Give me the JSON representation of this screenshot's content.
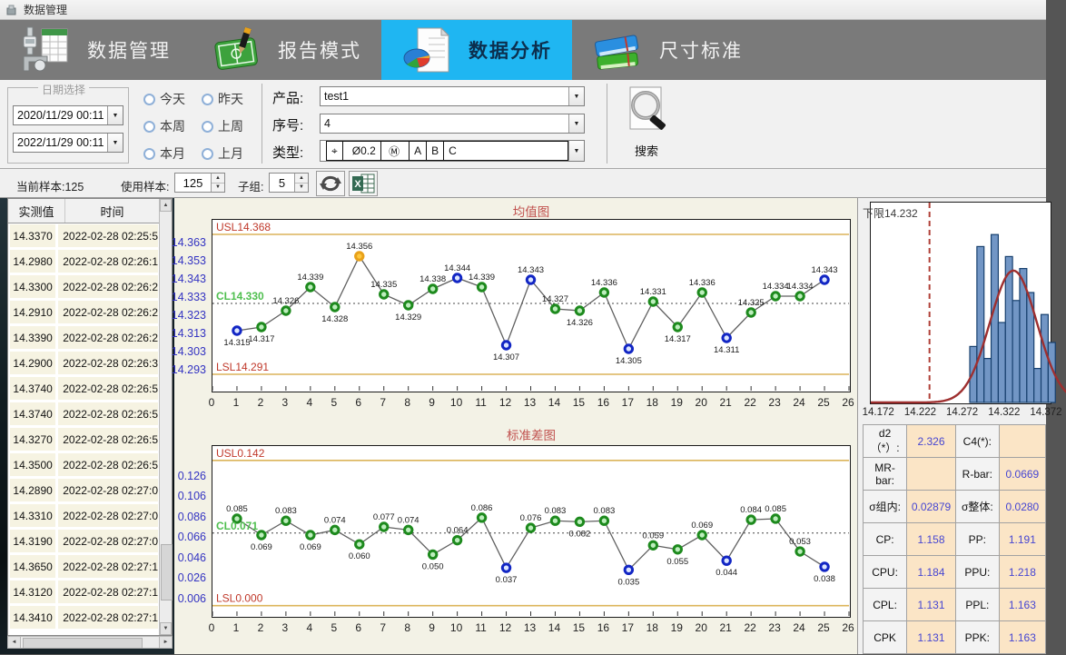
{
  "window_title": "数据管理",
  "palette": {
    "active_tab": "#1fb6f2",
    "ribbon_bg": "#7a7a7a",
    "title_red": "#c0504d",
    "limit_line": "#dcb45a",
    "limit_text": "#c0392b",
    "cl_text": "#4fbf4f",
    "ytick_blue": "#3434c2",
    "point_green": "#1d8a1d",
    "point_blue": "#1226c4",
    "point_orange": "#e8a11a",
    "hist_bar": "#7296c5",
    "hist_bar_border": "#17406e",
    "hist_curve": "#9e2f2f",
    "value_text": "#4646d2"
  },
  "ribbon": {
    "active_index": 2,
    "tabs": [
      {
        "label": "数据管理"
      },
      {
        "label": "报告模式"
      },
      {
        "label": "数据分析"
      },
      {
        "label": "尺寸标准"
      }
    ]
  },
  "filters": {
    "date_group_label": "日期选择",
    "date_from": "2020/11/29 00:11",
    "date_to": "2022/11/29 00:11",
    "radios": [
      "今天",
      "昨天",
      "本周",
      "上周",
      "本月",
      "上月"
    ],
    "product_label": "产品:",
    "product_value": "test1",
    "serial_label": "序号:",
    "serial_value": "4",
    "type_label": "类型:",
    "type_value": {
      "symbol": "⌖",
      "tolerance": "Ø0.2",
      "modifier": "Ⓜ",
      "datums": [
        "A",
        "B",
        "C"
      ]
    },
    "search_label": "搜索"
  },
  "samplebar": {
    "current_sample": "当前样本:125",
    "use_sample_label": "使用样本:",
    "use_sample_value": "125",
    "subgroup_label": "子组:",
    "subgroup_value": "5"
  },
  "data_table": {
    "columns": [
      "实测值",
      "时间"
    ],
    "rows": [
      [
        "14.3370",
        "2022-02-28 02:25:5"
      ],
      [
        "14.2980",
        "2022-02-28 02:26:1"
      ],
      [
        "14.3300",
        "2022-02-28 02:26:2"
      ],
      [
        "14.2910",
        "2022-02-28 02:26:2"
      ],
      [
        "14.3390",
        "2022-02-28 02:26:2"
      ],
      [
        "14.2900",
        "2022-02-28 02:26:3"
      ],
      [
        "14.3740",
        "2022-02-28 02:26:5"
      ],
      [
        "14.3740",
        "2022-02-28 02:26:5"
      ],
      [
        "14.3270",
        "2022-02-28 02:26:5"
      ],
      [
        "14.3500",
        "2022-02-28 02:26:5"
      ],
      [
        "14.2890",
        "2022-02-28 02:27:0"
      ],
      [
        "14.3310",
        "2022-02-28 02:27:0"
      ],
      [
        "14.3190",
        "2022-02-28 02:27:0"
      ],
      [
        "14.3650",
        "2022-02-28 02:27:1"
      ],
      [
        "14.3120",
        "2022-02-28 02:27:1"
      ],
      [
        "14.3410",
        "2022-02-28 02:27:1"
      ]
    ]
  },
  "chart_data": [
    {
      "type": "line",
      "name": "xbar-chart",
      "title": "均值图",
      "usl": 14.368,
      "usl_label": "USL14.368",
      "cl": 14.33,
      "cl_label": "CL14.330",
      "lsl": 14.291,
      "lsl_label": "LSL14.291",
      "ylim": [
        14.282,
        14.376
      ],
      "yticks": [
        "14.363",
        "14.353",
        "14.343",
        "14.333",
        "14.323",
        "14.313",
        "14.303",
        "14.293"
      ],
      "xlim": [
        0,
        26
      ],
      "points": [
        {
          "x": 1,
          "y": 14.315,
          "label": "14.315",
          "color": "blue",
          "label_pos": "below"
        },
        {
          "x": 2,
          "y": 14.317,
          "label": "14.317",
          "color": "green",
          "label_pos": "below"
        },
        {
          "x": 3,
          "y": 14.326,
          "label": "14.326",
          "color": "green",
          "label_pos": "above"
        },
        {
          "x": 4,
          "y": 14.339,
          "label": "14.339",
          "color": "green",
          "label_pos": "above"
        },
        {
          "x": 5,
          "y": 14.328,
          "label": "14.328",
          "color": "green",
          "label_pos": "below"
        },
        {
          "x": 6,
          "y": 14.356,
          "label": "14.356",
          "color": "orange",
          "label_pos": "above"
        },
        {
          "x": 7,
          "y": 14.335,
          "label": "14.335",
          "color": "green",
          "label_pos": "above"
        },
        {
          "x": 8,
          "y": 14.329,
          "label": "14.329",
          "color": "green",
          "label_pos": "below"
        },
        {
          "x": 9,
          "y": 14.338,
          "label": "14.338",
          "color": "green",
          "label_pos": "above"
        },
        {
          "x": 10,
          "y": 14.344,
          "label": "14.344",
          "color": "blue",
          "label_pos": "above"
        },
        {
          "x": 11,
          "y": 14.339,
          "label": "14.339",
          "color": "green",
          "label_pos": "above"
        },
        {
          "x": 12,
          "y": 14.307,
          "label": "14.307",
          "color": "blue",
          "label_pos": "below"
        },
        {
          "x": 13,
          "y": 14.343,
          "label": "14.343",
          "color": "blue",
          "label_pos": "above"
        },
        {
          "x": 14,
          "y": 14.327,
          "label": "14.327",
          "color": "green",
          "label_pos": "above"
        },
        {
          "x": 15,
          "y": 14.326,
          "label": "14.326",
          "color": "green",
          "label_pos": "below"
        },
        {
          "x": 16,
          "y": 14.336,
          "label": "14.336",
          "color": "green",
          "label_pos": "above"
        },
        {
          "x": 17,
          "y": 14.305,
          "label": "14.305",
          "color": "blue",
          "label_pos": "below"
        },
        {
          "x": 18,
          "y": 14.331,
          "label": "14.331",
          "color": "green",
          "label_pos": "above"
        },
        {
          "x": 19,
          "y": 14.317,
          "label": "14.317",
          "color": "green",
          "label_pos": "below"
        },
        {
          "x": 20,
          "y": 14.336,
          "label": "14.336",
          "color": "green",
          "label_pos": "above"
        },
        {
          "x": 21,
          "y": 14.311,
          "label": "14.311",
          "color": "blue",
          "label_pos": "below"
        },
        {
          "x": 22,
          "y": 14.325,
          "label": "14.325",
          "color": "green",
          "label_pos": "above"
        },
        {
          "x": 23,
          "y": 14.334,
          "label": "14.334",
          "color": "green",
          "label_pos": "above"
        },
        {
          "x": 24,
          "y": 14.334,
          "label": "14.334",
          "color": "green",
          "label_pos": "above"
        },
        {
          "x": 25,
          "y": 14.343,
          "label": "14.343",
          "color": "blue",
          "label_pos": "above"
        }
      ]
    },
    {
      "type": "line",
      "name": "stddev-chart",
      "title": "标准差图",
      "usl": 0.142,
      "usl_label": "USL0.142",
      "cl": 0.071,
      "cl_label": "CL0.071",
      "lsl": 0.0,
      "lsl_label": "LSL0.000",
      "ylim": [
        -0.01,
        0.156
      ],
      "yticks": [
        "0.126",
        "0.106",
        "0.086",
        "0.066",
        "0.046",
        "0.026",
        "0.006"
      ],
      "xlim": [
        0,
        26
      ],
      "points": [
        {
          "x": 1,
          "y": 0.085,
          "label": "0.085",
          "color": "green",
          "label_pos": "above"
        },
        {
          "x": 2,
          "y": 0.069,
          "label": "0.069",
          "color": "green",
          "label_pos": "below"
        },
        {
          "x": 3,
          "y": 0.083,
          "label": "0.083",
          "color": "green",
          "label_pos": "above"
        },
        {
          "x": 4,
          "y": 0.069,
          "label": "0.069",
          "color": "green",
          "label_pos": "below"
        },
        {
          "x": 5,
          "y": 0.074,
          "label": "0.074",
          "color": "green",
          "label_pos": "above"
        },
        {
          "x": 6,
          "y": 0.06,
          "label": "0.060",
          "color": "green",
          "label_pos": "below"
        },
        {
          "x": 7,
          "y": 0.077,
          "label": "0.077",
          "color": "green",
          "label_pos": "above"
        },
        {
          "x": 8,
          "y": 0.074,
          "label": "0.074",
          "color": "green",
          "label_pos": "above"
        },
        {
          "x": 9,
          "y": 0.05,
          "label": "0.050",
          "color": "green",
          "label_pos": "below"
        },
        {
          "x": 10,
          "y": 0.064,
          "label": "0.064",
          "color": "green",
          "label_pos": "above"
        },
        {
          "x": 11,
          "y": 0.086,
          "label": "0.086",
          "color": "green",
          "label_pos": "above"
        },
        {
          "x": 12,
          "y": 0.037,
          "label": "0.037",
          "color": "blue",
          "label_pos": "below"
        },
        {
          "x": 13,
          "y": 0.076,
          "label": "0.076",
          "color": "green",
          "label_pos": "above"
        },
        {
          "x": 14,
          "y": 0.083,
          "label": "0.083",
          "color": "green",
          "label_pos": "above"
        },
        {
          "x": 15,
          "y": 0.082,
          "label": "0.082",
          "color": "green",
          "label_pos": "below"
        },
        {
          "x": 16,
          "y": 0.083,
          "label": "0.083",
          "color": "green",
          "label_pos": "above"
        },
        {
          "x": 17,
          "y": 0.035,
          "label": "0.035",
          "color": "blue",
          "label_pos": "below"
        },
        {
          "x": 18,
          "y": 0.059,
          "label": "0.059",
          "color": "green",
          "label_pos": "above"
        },
        {
          "x": 19,
          "y": 0.055,
          "label": "0.055",
          "color": "green",
          "label_pos": "below"
        },
        {
          "x": 20,
          "y": 0.069,
          "label": "0.069",
          "color": "green",
          "label_pos": "above"
        },
        {
          "x": 21,
          "y": 0.044,
          "label": "0.044",
          "color": "blue",
          "label_pos": "below"
        },
        {
          "x": 22,
          "y": 0.084,
          "label": "0.084",
          "color": "green",
          "label_pos": "above"
        },
        {
          "x": 23,
          "y": 0.085,
          "label": "0.085",
          "color": "green",
          "label_pos": "above"
        },
        {
          "x": 24,
          "y": 0.053,
          "label": "0.053",
          "color": "green",
          "label_pos": "above"
        },
        {
          "x": 25,
          "y": 0.038,
          "label": "0.038",
          "color": "blue",
          "label_pos": "below"
        }
      ]
    },
    {
      "type": "histogram",
      "name": "distribution-histogram",
      "limit_label": "下限14.232",
      "limit_value": 14.232,
      "xlim": [
        14.162,
        14.372
      ],
      "xticks": [
        "14.172",
        "14.222",
        "14.272",
        "14.322",
        "14.372"
      ],
      "bars": [
        {
          "x0": 14.28,
          "x1": 14.2885,
          "h": 0.28
        },
        {
          "x0": 14.2885,
          "x1": 14.297,
          "h": 0.78
        },
        {
          "x0": 14.297,
          "x1": 14.3055,
          "h": 0.22
        },
        {
          "x0": 14.3055,
          "x1": 14.314,
          "h": 0.84
        },
        {
          "x0": 14.314,
          "x1": 14.3225,
          "h": 0.4
        },
        {
          "x0": 14.3225,
          "x1": 14.331,
          "h": 0.73
        },
        {
          "x0": 14.331,
          "x1": 14.3395,
          "h": 0.51
        },
        {
          "x0": 14.3395,
          "x1": 14.348,
          "h": 0.67
        },
        {
          "x0": 14.348,
          "x1": 14.3565,
          "h": 0.55
        },
        {
          "x0": 14.3565,
          "x1": 14.365,
          "h": 0.17
        },
        {
          "x0": 14.365,
          "x1": 14.3735,
          "h": 0.44
        },
        {
          "x0": 14.3735,
          "x1": 14.382,
          "h": 0.3
        }
      ],
      "curve": {
        "mean": 14.332,
        "sigma": 0.028,
        "peak": 0.66
      }
    }
  ],
  "stats_table": {
    "rows": [
      [
        "d2（*）:",
        "2.326",
        "C4(*):",
        ""
      ],
      [
        "MR-bar:",
        "",
        "R-bar:",
        "0.0669"
      ],
      [
        "σ组内:",
        "0.02879",
        "σ整体:",
        "0.0280"
      ],
      [
        "CP:",
        "1.158",
        "PP:",
        "1.191"
      ],
      [
        "CPU:",
        "1.184",
        "PPU:",
        "1.218"
      ],
      [
        "CPL:",
        "1.131",
        "PPL:",
        "1.163"
      ],
      [
        "CPK",
        "1.131",
        "PPK:",
        "1.163"
      ]
    ]
  }
}
